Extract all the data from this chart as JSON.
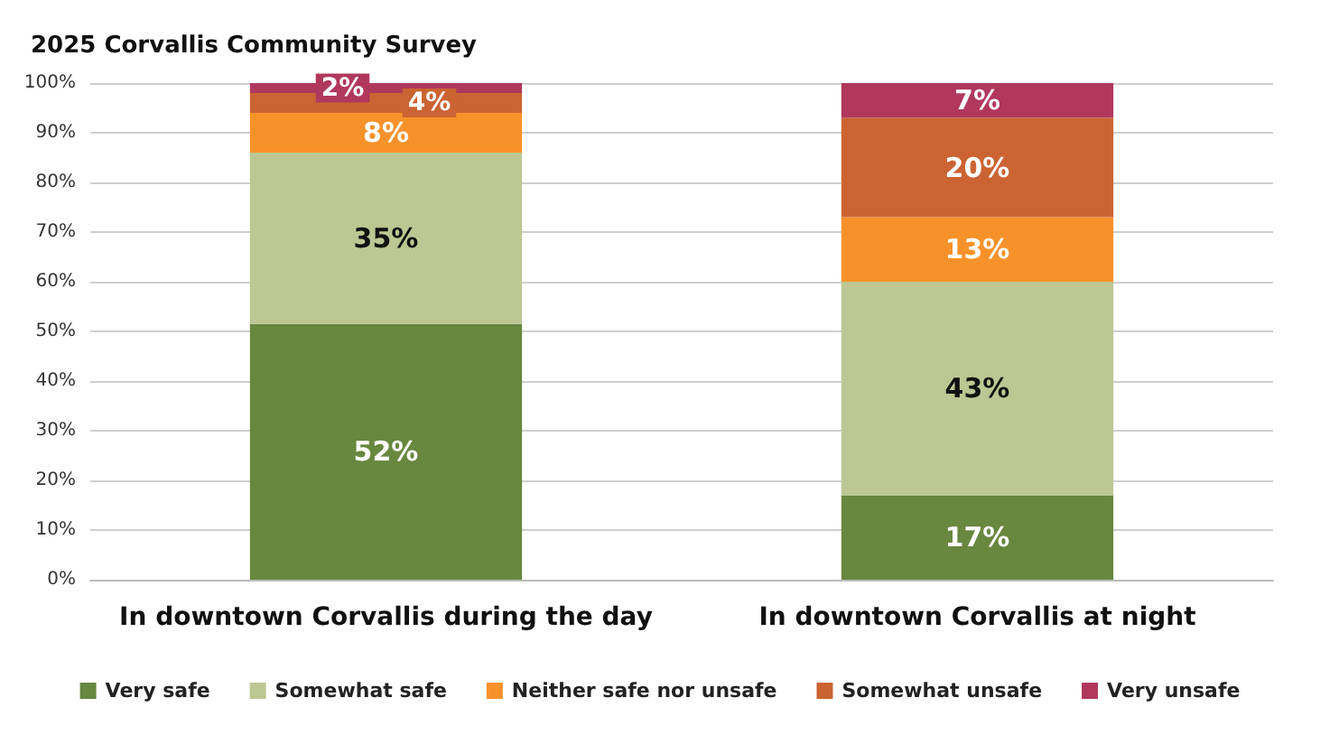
{
  "chart_data": {
    "type": "bar",
    "stacked": true,
    "title": "2025 Corvallis Community Survey",
    "categories": [
      "In downtown Corvallis during the day",
      "In downtown Corvallis at night"
    ],
    "series": [
      {
        "name": "Very safe",
        "color": "#68873f",
        "values": [
          51.5,
          17
        ],
        "value_labels": [
          "52%",
          "17%"
        ]
      },
      {
        "name": "Somewhat safe",
        "color": "#bcc793",
        "values": [
          34.5,
          43
        ],
        "value_labels": [
          "35%",
          "43%"
        ]
      },
      {
        "name": "Neither safe nor unsafe",
        "color": "#f7922a",
        "values": [
          8,
          13
        ],
        "value_labels": [
          "8%",
          "13%"
        ]
      },
      {
        "name": "Somewhat unsafe",
        "color": "#cb6432",
        "values": [
          4,
          20
        ],
        "value_labels": [
          "4%",
          "20%"
        ]
      },
      {
        "name": "Very unsafe",
        "color": "#b0385c",
        "values": [
          2,
          7
        ],
        "value_labels": [
          "2%",
          "7%"
        ]
      }
    ],
    "ylim": [
      0,
      100
    ],
    "yticks": [
      {
        "value": 0,
        "label": "0%"
      },
      {
        "value": 10,
        "label": "10%"
      },
      {
        "value": 20,
        "label": "20%"
      },
      {
        "value": 30,
        "label": "30%"
      },
      {
        "value": 40,
        "label": "40%"
      },
      {
        "value": 50,
        "label": "50%"
      },
      {
        "value": 60,
        "label": "60%"
      },
      {
        "value": 70,
        "label": "70%"
      },
      {
        "value": 80,
        "label": "80%"
      },
      {
        "value": 90,
        "label": "90%"
      },
      {
        "value": 100,
        "label": "100%"
      }
    ],
    "grid": "y",
    "legend": "bottom"
  }
}
